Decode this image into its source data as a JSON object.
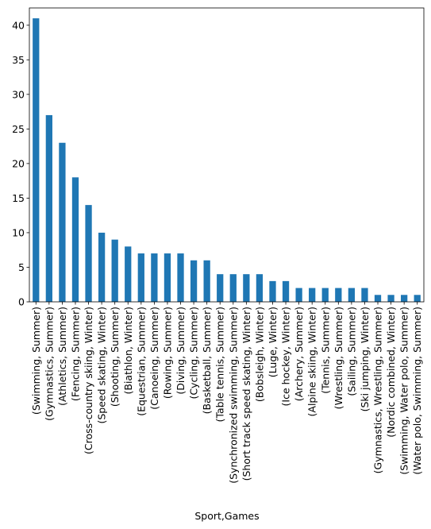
{
  "chart_data": {
    "type": "bar",
    "title": "",
    "xlabel": "Sport,Games",
    "ylabel": "",
    "ylim": [
      0,
      42.5
    ],
    "yticks": [
      0,
      5,
      10,
      15,
      20,
      25,
      30,
      35,
      40
    ],
    "bar_color": "#1f77b4",
    "grid": false,
    "legend": "none",
    "categories": [
      "(Swimming, Summer)",
      "(Gymnastics, Summer)",
      "(Athletics, Summer)",
      "(Fencing, Summer)",
      "(Cross-country skiing, Winter)",
      "(Speed skating, Winter)",
      "(Shooting, Summer)",
      "(Biathlon, Winter)",
      "(Equestrian, Summer)",
      "(Canoeing, Summer)",
      "(Rowing, Summer)",
      "(Diving, Summer)",
      "(Cycling, Summer)",
      "(Basketball, Summer)",
      "(Table tennis, Summer)",
      "(Synchronized swimming, Summer)",
      "(Short track speed skating, Winter)",
      "(Bobsleigh, Winter)",
      "(Luge, Winter)",
      "(Ice hockey, Winter)",
      "(Archery, Summer)",
      "(Alpine skiing, Winter)",
      "(Tennis, Summer)",
      "(Wrestling, Summer)",
      "(Sailing, Summer)",
      "(Ski jumping, Winter)",
      "(Gymnastics, Wrestling, Summer)",
      "(Nordic combined, Winter)",
      "(Swimming, Water polo, Summer)",
      "(Water polo, Swimming, Summer)"
    ],
    "values": [
      41,
      27,
      23,
      18,
      14,
      10,
      9,
      8,
      7,
      7,
      7,
      7,
      6,
      6,
      4,
      4,
      4,
      4,
      3,
      3,
      2,
      2,
      2,
      2,
      2,
      2,
      1,
      1,
      1,
      1
    ]
  }
}
